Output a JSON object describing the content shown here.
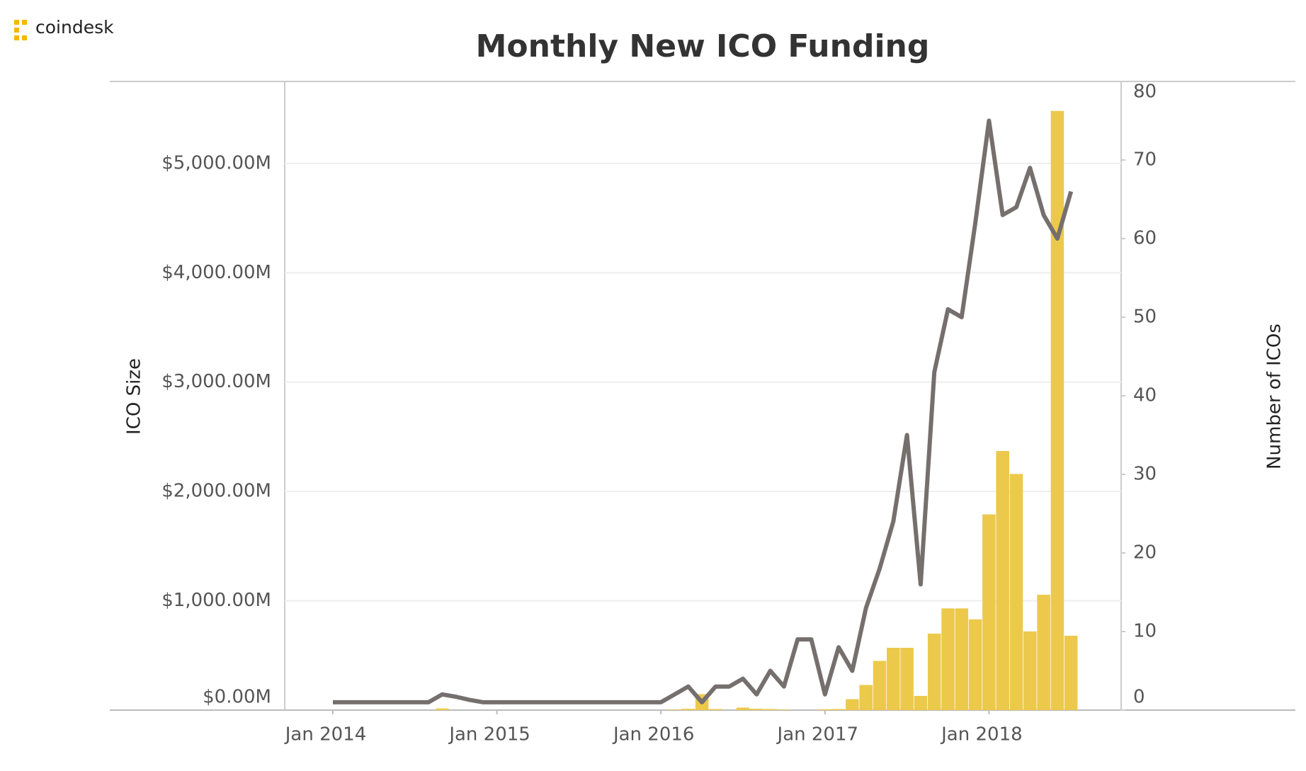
{
  "brand": "coindesk",
  "chart_data": {
    "type": "bar-line",
    "title": "Monthly New ICO Funding",
    "ylabel": "ICO Size",
    "y2label": "Number of ICOs",
    "x": [
      "2014-01",
      "2014-02",
      "2014-03",
      "2014-04",
      "2014-05",
      "2014-06",
      "2014-07",
      "2014-08",
      "2014-09",
      "2014-10",
      "2014-11",
      "2014-12",
      "2015-01",
      "2015-02",
      "2015-03",
      "2015-04",
      "2015-05",
      "2015-06",
      "2015-07",
      "2015-08",
      "2015-09",
      "2015-10",
      "2015-11",
      "2015-12",
      "2016-01",
      "2016-02",
      "2016-03",
      "2016-04",
      "2016-05",
      "2016-06",
      "2016-07",
      "2016-08",
      "2016-09",
      "2016-10",
      "2016-11",
      "2016-12",
      "2017-01",
      "2017-02",
      "2017-03",
      "2017-04",
      "2017-05",
      "2017-06",
      "2017-07",
      "2017-08",
      "2017-09",
      "2017-10",
      "2017-11",
      "2017-12",
      "2018-01",
      "2018-02",
      "2018-03",
      "2018-04",
      "2018-05",
      "2018-06",
      "2018-07"
    ],
    "xticks": [
      {
        "value": "2014-01",
        "label": "Jan 2014"
      },
      {
        "value": "2015-01",
        "label": "Jan 2015"
      },
      {
        "value": "2016-01",
        "label": "Jan 2016"
      },
      {
        "value": "2017-01",
        "label": "Jan 2017"
      },
      {
        "value": "2018-01",
        "label": "Jan 2018"
      }
    ],
    "series": [
      {
        "name": "ICO Size",
        "kind": "bar",
        "color": "#ecc94b",
        "values": [
          0,
          0,
          0,
          0,
          0,
          0,
          0,
          0,
          15,
          0,
          0,
          0,
          0,
          0,
          0,
          0,
          0,
          0,
          0,
          0,
          0,
          0,
          0,
          0,
          0,
          5,
          12,
          146,
          10,
          0,
          23,
          12,
          10,
          5,
          0,
          0,
          8,
          10,
          100,
          230,
          450,
          570,
          570,
          130,
          700,
          930,
          930,
          830,
          1790,
          2370,
          2160,
          720,
          1055,
          5480,
          680
        ]
      },
      {
        "name": "Number of ICOs",
        "kind": "line",
        "axis": "y2",
        "color": "#756f6d",
        "values": [
          1,
          1,
          1,
          1,
          1,
          1,
          1,
          1,
          2,
          1.7,
          1.3,
          1,
          1,
          1,
          1,
          1,
          1,
          1,
          1,
          1,
          1,
          1,
          1,
          1,
          1,
          2,
          3,
          1,
          3,
          3,
          4,
          2,
          5,
          3,
          9,
          9,
          2,
          8,
          5,
          13,
          18,
          24,
          35,
          16,
          43,
          51,
          50,
          62,
          75,
          63,
          64,
          69,
          63,
          60,
          66
        ]
      }
    ],
    "ylim": [
      0,
      5750
    ],
    "yticks": [
      {
        "value": 0,
        "label": "$0.00M"
      },
      {
        "value": 1000,
        "label": "$1,000.00M"
      },
      {
        "value": 2000,
        "label": "$2,000.00M"
      },
      {
        "value": 3000,
        "label": "$3,000.00M"
      },
      {
        "value": 4000,
        "label": "$4,000.00M"
      },
      {
        "value": 5000,
        "label": "$5,000.00M"
      }
    ],
    "y2lim": [
      0,
      80
    ],
    "y2ticks": [
      0,
      10,
      20,
      30,
      40,
      50,
      60,
      70,
      80
    ],
    "grid": true
  }
}
